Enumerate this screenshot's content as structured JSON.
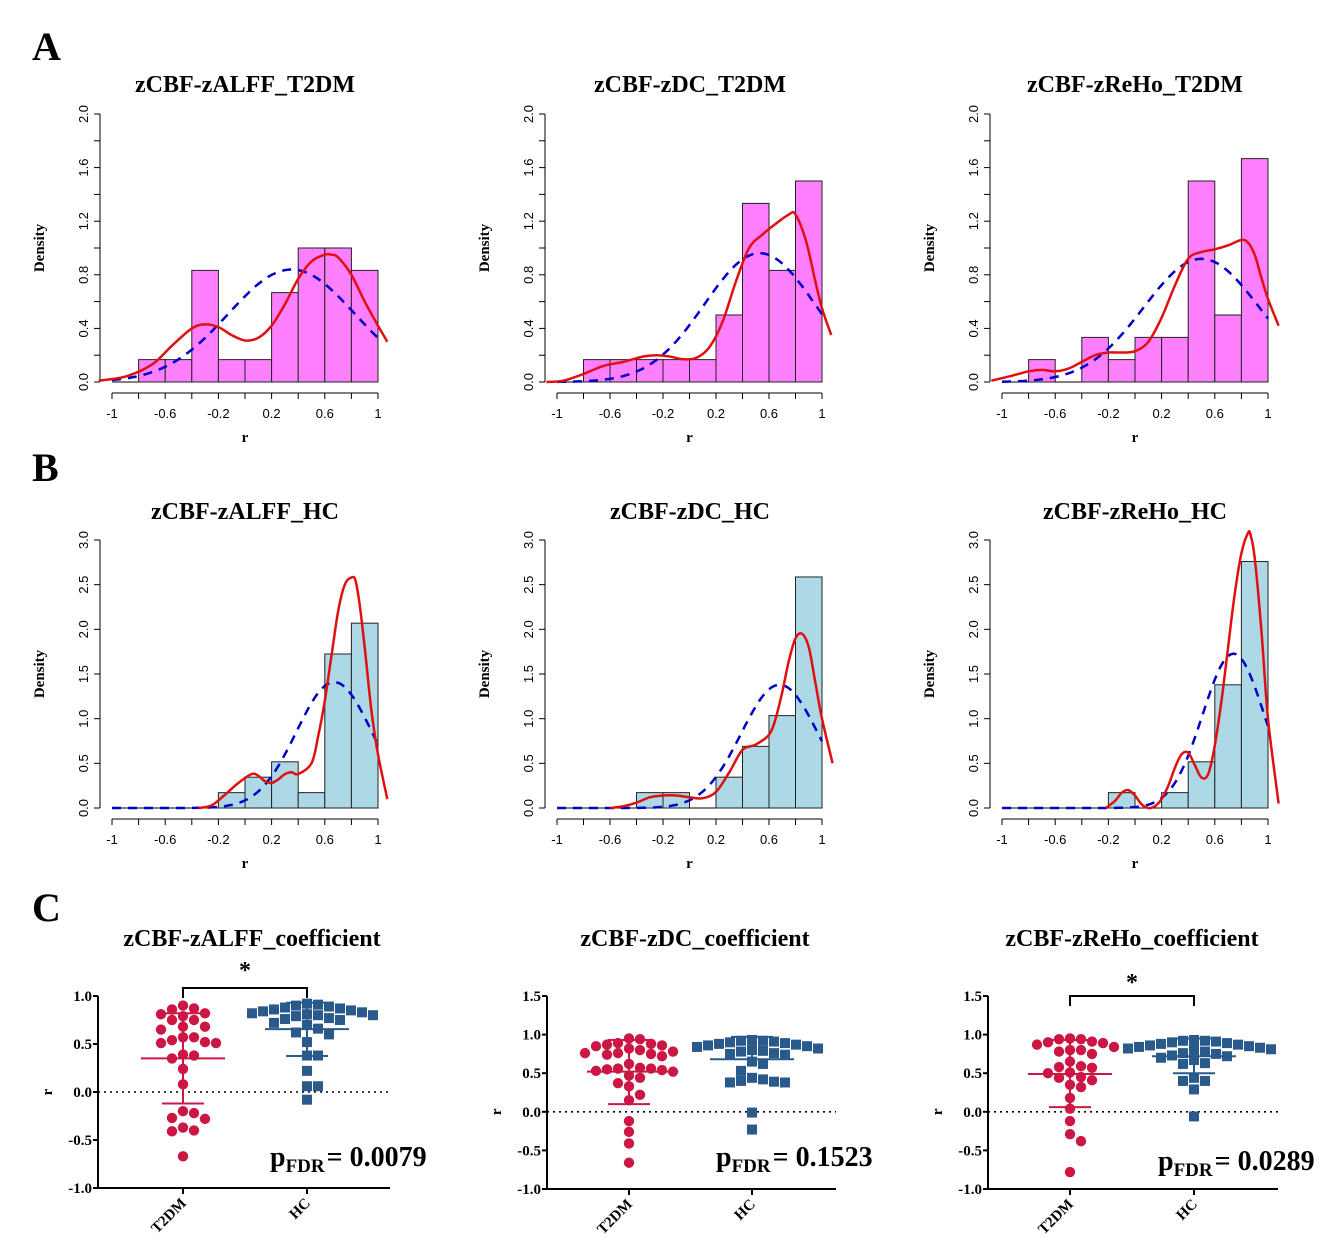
{
  "panel_letters": [
    "A",
    "B",
    "C"
  ],
  "chart_data": [
    {
      "id": "A1",
      "type": "bar",
      "subtype": "histogram",
      "title": "zCBF-zALFF_T2DM",
      "xlabel": "r",
      "ylabel": "Density",
      "xlim": [
        -1,
        1
      ],
      "ylim": [
        0,
        2.0
      ],
      "xticks": [
        "-1",
        "-0.6",
        "-0.2",
        "0.2",
        "0.6",
        "1"
      ],
      "yticks": [
        "0.0",
        "0.4",
        "0.8",
        "1.2",
        "1.6",
        "2.0"
      ],
      "bin_edges": [
        -1,
        -0.8,
        -0.6,
        -0.4,
        -0.2,
        0,
        0.2,
        0.4,
        0.6,
        0.8,
        1
      ],
      "values": [
        0,
        0.167,
        0.167,
        0.833,
        0.167,
        0.167,
        0.667,
        1.0,
        1.0,
        0.833
      ],
      "bar_color": "#ff80ff",
      "normal_curve": {
        "mean": 0.35,
        "sd": 0.475,
        "color": "#0000cc",
        "style": "dashed"
      },
      "kde_curve": {
        "color": "#e01010",
        "x": [
          -1.1,
          -0.9,
          -0.7,
          -0.55,
          -0.4,
          -0.3,
          -0.2,
          -0.1,
          0,
          0.1,
          0.2,
          0.3,
          0.4,
          0.5,
          0.6,
          0.65,
          0.7,
          0.8,
          0.9,
          1.0,
          1.07
        ],
        "y": [
          0.01,
          0.04,
          0.13,
          0.27,
          0.4,
          0.43,
          0.41,
          0.35,
          0.31,
          0.33,
          0.42,
          0.58,
          0.77,
          0.9,
          0.95,
          0.95,
          0.93,
          0.8,
          0.6,
          0.42,
          0.3
        ]
      }
    },
    {
      "id": "A2",
      "type": "bar",
      "subtype": "histogram",
      "title": "zCBF-zDC_T2DM",
      "xlabel": "r",
      "ylabel": "Density",
      "xlim": [
        -1,
        1
      ],
      "ylim": [
        0,
        2.0
      ],
      "xticks": [
        "-1",
        "-0.6",
        "-0.2",
        "0.2",
        "0.6",
        "1"
      ],
      "yticks": [
        "0.0",
        "0.4",
        "0.8",
        "1.2",
        "1.6",
        "2.0"
      ],
      "bin_edges": [
        -1,
        -0.8,
        -0.6,
        -0.4,
        -0.2,
        0,
        0.2,
        0.4,
        0.6,
        0.8,
        1
      ],
      "values": [
        0,
        0.167,
        0.167,
        0.167,
        0.167,
        0.167,
        0.5,
        1.333,
        0.833,
        1.5
      ],
      "bar_color": "#ff80ff",
      "normal_curve": {
        "mean": 0.53,
        "sd": 0.415,
        "color": "#0000cc",
        "style": "dashed"
      },
      "kde_curve": {
        "color": "#e01010",
        "x": [
          -1.08,
          -0.95,
          -0.8,
          -0.65,
          -0.5,
          -0.35,
          -0.25,
          -0.15,
          -0.05,
          0.05,
          0.15,
          0.25,
          0.35,
          0.45,
          0.55,
          0.65,
          0.75,
          0.8,
          0.88,
          0.95,
          1.0,
          1.07
        ],
        "y": [
          0.0,
          0.01,
          0.06,
          0.12,
          0.15,
          0.19,
          0.2,
          0.19,
          0.17,
          0.18,
          0.26,
          0.45,
          0.75,
          1.0,
          1.1,
          1.18,
          1.25,
          1.25,
          1.05,
          0.75,
          0.55,
          0.35
        ]
      }
    },
    {
      "id": "A3",
      "type": "bar",
      "subtype": "histogram",
      "title": "zCBF-zReHo_T2DM",
      "xlabel": "r",
      "ylabel": "Density",
      "xlim": [
        -1,
        1
      ],
      "ylim": [
        0,
        2.0
      ],
      "xticks": [
        "-1",
        "-0.6",
        "-0.2",
        "0.2",
        "0.6",
        "1"
      ],
      "yticks": [
        "0.0",
        "0.4",
        "0.8",
        "1.2",
        "1.6",
        "2.0"
      ],
      "bin_edges": [
        -1,
        -0.8,
        -0.6,
        -0.4,
        -0.2,
        0,
        0.2,
        0.4,
        0.6,
        0.8,
        1
      ],
      "values": [
        0,
        0.167,
        0,
        0.333,
        0.167,
        0.333,
        0.333,
        1.5,
        0.5,
        1.667
      ],
      "bar_color": "#ff80ff",
      "normal_curve": {
        "mean": 0.5,
        "sd": 0.434,
        "color": "#0000cc",
        "style": "dashed"
      },
      "kde_curve": {
        "color": "#e01010",
        "x": [
          -1.08,
          -0.95,
          -0.8,
          -0.7,
          -0.6,
          -0.5,
          -0.4,
          -0.3,
          -0.2,
          -0.1,
          0,
          0.1,
          0.2,
          0.3,
          0.4,
          0.5,
          0.6,
          0.7,
          0.8,
          0.85,
          0.9,
          0.95,
          1.0,
          1.08
        ],
        "y": [
          0.01,
          0.04,
          0.08,
          0.09,
          0.08,
          0.1,
          0.15,
          0.2,
          0.22,
          0.22,
          0.23,
          0.3,
          0.48,
          0.72,
          0.92,
          0.97,
          0.99,
          1.02,
          1.06,
          1.04,
          0.95,
          0.78,
          0.62,
          0.42
        ]
      }
    },
    {
      "id": "B1",
      "type": "bar",
      "subtype": "histogram",
      "title": "zCBF-zALFF_HC",
      "xlabel": "r",
      "ylabel": "Density",
      "xlim": [
        -1,
        1
      ],
      "ylim": [
        0,
        3.0
      ],
      "xticks": [
        "-1",
        "-0.6",
        "-0.2",
        "0.2",
        "0.6",
        "1"
      ],
      "yticks": [
        "0.0",
        "0.5",
        "1.0",
        "1.5",
        "2.0",
        "2.5",
        "3.0"
      ],
      "bin_edges": [
        -1,
        -0.8,
        -0.6,
        -0.4,
        -0.2,
        0,
        0.2,
        0.4,
        0.6,
        0.8,
        1
      ],
      "values": [
        0,
        0,
        0,
        0,
        0.172,
        0.345,
        0.517,
        0.172,
        1.724,
        2.069
      ],
      "bar_color": "#add8e6",
      "normal_curve": {
        "mean": 0.67,
        "sd": 0.283,
        "color": "#0000cc",
        "style": "dashed"
      },
      "kde_curve": {
        "color": "#e01010",
        "x": [
          -0.35,
          -0.25,
          -0.15,
          -0.05,
          0.05,
          0.1,
          0.15,
          0.2,
          0.25,
          0.3,
          0.35,
          0.4,
          0.5,
          0.55,
          0.6,
          0.65,
          0.7,
          0.75,
          0.8,
          0.83,
          0.86,
          0.9,
          0.95,
          1.0,
          1.07
        ],
        "y": [
          0.0,
          0.03,
          0.15,
          0.28,
          0.38,
          0.36,
          0.3,
          0.28,
          0.32,
          0.38,
          0.4,
          0.38,
          0.5,
          0.8,
          1.2,
          1.7,
          2.2,
          2.5,
          2.58,
          2.55,
          2.3,
          1.8,
          1.1,
          0.6,
          0.1
        ]
      }
    },
    {
      "id": "B2",
      "type": "bar",
      "subtype": "histogram",
      "title": "zCBF-zDC_HC",
      "xlabel": "r",
      "ylabel": "Density",
      "xlim": [
        -1,
        1
      ],
      "ylim": [
        0,
        3.0
      ],
      "xticks": [
        "-1",
        "-0.6",
        "-0.2",
        "0.2",
        "0.6",
        "1"
      ],
      "yticks": [
        "0.0",
        "0.5",
        "1.0",
        "1.5",
        "2.0",
        "2.5",
        "3.0"
      ],
      "bin_edges": [
        -1,
        -0.8,
        -0.6,
        -0.4,
        -0.2,
        0,
        0.2,
        0.4,
        0.6,
        0.8,
        1
      ],
      "values": [
        0,
        0,
        0,
        0.172,
        0.172,
        0,
        0.345,
        0.69,
        1.034,
        2.586
      ],
      "bar_color": "#add8e6",
      "normal_curve": {
        "mean": 0.68,
        "sd": 0.289,
        "color": "#0000cc",
        "style": "dashed"
      },
      "kde_curve": {
        "color": "#e01010",
        "x": [
          -0.6,
          -0.5,
          -0.4,
          -0.3,
          -0.2,
          -0.1,
          0,
          0.1,
          0.2,
          0.3,
          0.4,
          0.5,
          0.6,
          0.65,
          0.7,
          0.75,
          0.8,
          0.85,
          0.9,
          0.95,
          1.0,
          1.08
        ],
        "y": [
          0.0,
          0.02,
          0.06,
          0.12,
          0.14,
          0.14,
          0.12,
          0.11,
          0.18,
          0.4,
          0.65,
          0.71,
          0.82,
          1.0,
          1.3,
          1.65,
          1.9,
          1.95,
          1.8,
          1.4,
          1.0,
          0.5
        ]
      }
    },
    {
      "id": "B3",
      "type": "bar",
      "subtype": "histogram",
      "title": "zCBF-zReHo_HC",
      "xlabel": "r",
      "ylabel": "Density",
      "xlim": [
        -1,
        1
      ],
      "ylim": [
        0,
        3.0
      ],
      "xticks": [
        "-1",
        "-0.6",
        "-0.2",
        "0.2",
        "0.6",
        "1"
      ],
      "yticks": [
        "0.0",
        "0.5",
        "1.0",
        "1.5",
        "2.0",
        "2.5",
        "3.0"
      ],
      "bin_edges": [
        -1,
        -0.8,
        -0.6,
        -0.4,
        -0.2,
        0,
        0.2,
        0.4,
        0.6,
        0.8,
        1
      ],
      "values": [
        0,
        0,
        0,
        0,
        0.172,
        0,
        0.172,
        0.517,
        1.379,
        2.759
      ],
      "bar_color": "#add8e6",
      "normal_curve": {
        "mean": 0.74,
        "sd": 0.231,
        "color": "#0000cc",
        "style": "dashed"
      },
      "kde_curve": {
        "color": "#e01010",
        "x": [
          -0.22,
          -0.15,
          -0.1,
          -0.05,
          0,
          0.05,
          0.1,
          0.15,
          0.2,
          0.25,
          0.3,
          0.35,
          0.4,
          0.45,
          0.5,
          0.55,
          0.6,
          0.65,
          0.7,
          0.75,
          0.8,
          0.85,
          0.87,
          0.9,
          0.95,
          1.0,
          1.08
        ],
        "y": [
          0.0,
          0.08,
          0.17,
          0.2,
          0.14,
          0.04,
          0.0,
          0.02,
          0.1,
          0.25,
          0.45,
          0.6,
          0.62,
          0.48,
          0.34,
          0.38,
          0.7,
          1.2,
          1.8,
          2.4,
          2.85,
          3.08,
          3.05,
          2.8,
          2.0,
          1.0,
          0.05
        ]
      }
    },
    {
      "id": "C1",
      "type": "scatter",
      "subtype": "dot-plot-mean-sd",
      "title": "zCBF-zALFF_coefficient",
      "xlabel": "",
      "ylabel": "r",
      "categories": [
        "T2DM",
        "HC"
      ],
      "ylim": [
        -1.0,
        1.0
      ],
      "yticks": [
        "-1.0",
        "-0.5",
        "0.0",
        "0.5",
        "1.0"
      ],
      "significance": {
        "marker": "*",
        "between": [
          "T2DM",
          "HC"
        ]
      },
      "p_label": {
        "prefix": "p",
        "sub": "FDR",
        "text": "= 0.0079"
      },
      "series": [
        {
          "name": "T2DM",
          "color": "#cc1744",
          "marker": "circle",
          "mean": 0.35,
          "sd_upper": 0.82,
          "sd_lower": -0.12,
          "values": [
            0.9,
            0.87,
            0.86,
            0.82,
            0.81,
            0.79,
            0.75,
            0.75,
            0.68,
            0.68,
            0.65,
            0.57,
            0.57,
            0.54,
            0.52,
            0.51,
            0.51,
            0.39,
            0.38,
            0.35,
            0.24,
            0.08,
            -0.2,
            -0.22,
            -0.27,
            -0.28,
            -0.37,
            -0.4,
            -0.41,
            -0.67
          ]
        },
        {
          "name": "HC",
          "color": "#2a5a8c",
          "marker": "square",
          "mean": 0.655,
          "sd_upper": 0.93,
          "sd_lower": 0.375,
          "values": [
            0.92,
            0.91,
            0.9,
            0.89,
            0.88,
            0.87,
            0.86,
            0.85,
            0.84,
            0.83,
            0.82,
            0.81,
            0.8,
            0.8,
            0.79,
            0.77,
            0.76,
            0.75,
            0.72,
            0.7,
            0.66,
            0.62,
            0.6,
            0.52,
            0.38,
            0.38,
            0.22,
            0.06,
            0.06,
            -0.08
          ]
        }
      ]
    },
    {
      "id": "C2",
      "type": "scatter",
      "subtype": "dot-plot-mean-sd",
      "title": "zCBF-zDC_coefficient",
      "xlabel": "",
      "ylabel": "r",
      "categories": [
        "T2DM",
        "HC"
      ],
      "ylim": [
        -1.0,
        1.5
      ],
      "yticks": [
        "-1.0",
        "-0.5",
        "0.0",
        "0.5",
        "1.0",
        "1.5"
      ],
      "significance": null,
      "p_label": {
        "prefix": "p",
        "sub": "FDR",
        "text": "= 0.1523"
      },
      "series": [
        {
          "name": "T2DM",
          "color": "#cc1744",
          "marker": "circle",
          "mean": 0.52,
          "sd_upper": 0.93,
          "sd_lower": 0.1,
          "values": [
            0.95,
            0.94,
            0.89,
            0.88,
            0.87,
            0.86,
            0.85,
            0.82,
            0.8,
            0.78,
            0.76,
            0.76,
            0.75,
            0.74,
            0.72,
            0.62,
            0.57,
            0.56,
            0.56,
            0.55,
            0.54,
            0.53,
            0.52,
            0.47,
            0.44,
            0.37,
            0.33,
            0.22,
            0.15,
            -0.12,
            -0.26,
            -0.41,
            -0.66
          ]
        },
        {
          "name": "HC",
          "color": "#2a5a8c",
          "marker": "square",
          "mean": 0.68,
          "sd_upper": 0.97,
          "sd_lower": null,
          "values": [
            0.93,
            0.92,
            0.92,
            0.91,
            0.9,
            0.89,
            0.88,
            0.87,
            0.86,
            0.85,
            0.84,
            0.82,
            0.8,
            0.79,
            0.78,
            0.76,
            0.75,
            0.74,
            0.65,
            0.62,
            0.53,
            0.44,
            0.42,
            0.4,
            0.39,
            0.38,
            0.38,
            -0.01,
            -0.23
          ]
        }
      ]
    },
    {
      "id": "C3",
      "type": "scatter",
      "subtype": "dot-plot-mean-sd",
      "title": "zCBF-zReHo_coefficient",
      "xlabel": "",
      "ylabel": "r",
      "categories": [
        "T2DM",
        "HC"
      ],
      "ylim": [
        -1.0,
        1.5
      ],
      "yticks": [
        "-1.0",
        "-0.5",
        "0.0",
        "0.5",
        "1.0",
        "1.5"
      ],
      "significance": {
        "marker": "*",
        "between": [
          "T2DM",
          "HC"
        ]
      },
      "p_label": {
        "prefix": "p",
        "sub": "FDR",
        "text": "= 0.0289"
      },
      "series": [
        {
          "name": "T2DM",
          "color": "#cc1744",
          "marker": "circle",
          "mean": 0.49,
          "sd_upper": 0.93,
          "sd_lower": 0.06,
          "values": [
            0.95,
            0.94,
            0.94,
            0.91,
            0.9,
            0.89,
            0.87,
            0.84,
            0.8,
            0.8,
            0.78,
            0.75,
            0.65,
            0.59,
            0.58,
            0.57,
            0.51,
            0.5,
            0.45,
            0.44,
            0.41,
            0.35,
            0.32,
            0.18,
            0.04,
            -0.12,
            -0.29,
            -0.38,
            -0.78
          ]
        },
        {
          "name": "HC",
          "color": "#2a5a8c",
          "marker": "square",
          "mean": 0.72,
          "sd_upper": 0.95,
          "sd_lower": 0.5,
          "values": [
            0.93,
            0.92,
            0.92,
            0.91,
            0.9,
            0.89,
            0.88,
            0.87,
            0.86,
            0.85,
            0.84,
            0.83,
            0.82,
            0.81,
            0.8,
            0.78,
            0.76,
            0.75,
            0.73,
            0.72,
            0.7,
            0.67,
            0.63,
            0.62,
            0.44,
            0.4,
            0.4,
            0.29,
            -0.06
          ]
        }
      ]
    }
  ]
}
